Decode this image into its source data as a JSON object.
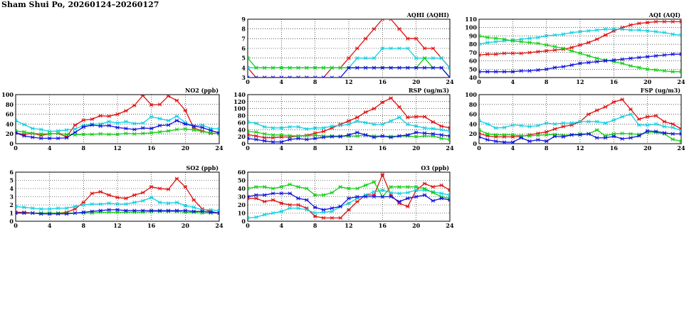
{
  "page": {
    "title": "Sham Shui Po, 20260124–20260127"
  },
  "colors": {
    "series_colors": [
      "#e01010",
      "#10d0e0",
      "#10d010",
      "#1010e0"
    ],
    "grid": "#000000"
  },
  "chart_data": [
    {
      "id": "aqhi",
      "type": "line",
      "title": "AQHI (AQHI)",
      "xlim": [
        0,
        24
      ],
      "ylim": [
        3,
        9
      ],
      "xticks": [
        0,
        4,
        8,
        12,
        16,
        20,
        24
      ],
      "yticks": [
        3,
        4,
        5,
        6,
        7,
        8,
        9
      ],
      "x": [
        0,
        1,
        2,
        3,
        4,
        5,
        6,
        7,
        8,
        9,
        10,
        11,
        12,
        13,
        14,
        15,
        16,
        17,
        18,
        19,
        20,
        21,
        22,
        23,
        24
      ],
      "series": [
        {
          "values": [
            4,
            3,
            3,
            3,
            3,
            3,
            3,
            3,
            3,
            3,
            4,
            4,
            5,
            6,
            7,
            8,
            9,
            9,
            8,
            7,
            7,
            6,
            6,
            5,
            4
          ]
        },
        {
          "values": [
            4,
            4,
            4,
            4,
            4,
            4,
            4,
            4,
            4,
            4,
            4,
            4,
            4,
            5,
            5,
            5,
            6,
            6,
            6,
            6,
            5,
            5,
            5,
            5,
            4
          ]
        },
        {
          "values": [
            5,
            4,
            4,
            4,
            4,
            4,
            4,
            4,
            4,
            4,
            4,
            4,
            4,
            4,
            4,
            4,
            4,
            4,
            4,
            4,
            4,
            5,
            4,
            4,
            3
          ]
        },
        {
          "values": [
            3,
            3,
            3,
            3,
            3,
            3,
            3,
            3,
            3,
            3,
            3,
            3,
            4,
            4,
            4,
            4,
            4,
            4,
            4,
            4,
            4,
            4,
            4,
            4,
            3
          ]
        }
      ]
    },
    {
      "id": "aqi",
      "type": "line",
      "title": "AQI (AQI)",
      "xlim": [
        0,
        24
      ],
      "ylim": [
        40,
        110
      ],
      "xticks": [
        0,
        4,
        8,
        12,
        16,
        20,
        24
      ],
      "yticks": [
        40,
        50,
        60,
        70,
        80,
        90,
        100,
        110
      ],
      "x": [
        0,
        1,
        2,
        3,
        4,
        5,
        6,
        7,
        8,
        9,
        10,
        11,
        12,
        13,
        14,
        15,
        16,
        17,
        18,
        19,
        20,
        21,
        22,
        23,
        24
      ],
      "series": [
        {
          "values": [
            67,
            68,
            68,
            69,
            69,
            69,
            70,
            71,
            72,
            73,
            74,
            76,
            79,
            82,
            86,
            91,
            96,
            100,
            103,
            105,
            106,
            107,
            107,
            107,
            107
          ]
        },
        {
          "values": [
            80,
            82,
            83,
            84,
            85,
            86,
            87,
            88,
            90,
            91,
            92,
            94,
            95,
            96,
            97,
            98,
            98,
            98,
            97,
            97,
            96,
            95,
            94,
            92,
            91
          ]
        },
        {
          "values": [
            90,
            88,
            87,
            86,
            84,
            83,
            82,
            81,
            79,
            77,
            75,
            72,
            69,
            66,
            63,
            61,
            59,
            57,
            54,
            52,
            50,
            49,
            48,
            47,
            47
          ]
        },
        {
          "values": [
            47,
            47,
            47,
            47,
            47,
            48,
            48,
            49,
            50,
            52,
            53,
            55,
            57,
            58,
            59,
            60,
            61,
            62,
            63,
            64,
            65,
            66,
            67,
            68,
            68
          ]
        }
      ]
    },
    {
      "id": "no2",
      "type": "line",
      "title": "NO2 (ppb)",
      "xlim": [
        0,
        24
      ],
      "ylim": [
        0,
        100
      ],
      "xticks": [
        0,
        4,
        8,
        12,
        16,
        20,
        24
      ],
      "yticks": [
        0,
        20,
        40,
        60,
        80,
        100
      ],
      "x": [
        0,
        1,
        2,
        3,
        4,
        5,
        6,
        7,
        8,
        9,
        10,
        11,
        12,
        13,
        14,
        15,
        16,
        17,
        18,
        19,
        20,
        21,
        22,
        23,
        24
      ],
      "series": [
        {
          "values": [
            22,
            19,
            21,
            17,
            20,
            21,
            14,
            38,
            48,
            50,
            57,
            56,
            60,
            67,
            78,
            98,
            79,
            80,
            97,
            88,
            68,
            32,
            26,
            21,
            21
          ]
        },
        {
          "values": [
            47,
            39,
            31,
            29,
            25,
            26,
            28,
            30,
            37,
            40,
            40,
            45,
            42,
            45,
            41,
            42,
            55,
            51,
            47,
            56,
            43,
            36,
            38,
            31,
            30
          ]
        },
        {
          "values": [
            26,
            24,
            21,
            20,
            20,
            21,
            19,
            18,
            19,
            19,
            20,
            19,
            19,
            21,
            20,
            21,
            22,
            24,
            26,
            29,
            30,
            28,
            25,
            22,
            20
          ]
        },
        {
          "values": [
            22,
            16,
            13,
            11,
            11,
            11,
            12,
            23,
            34,
            38,
            36,
            37,
            33,
            31,
            29,
            32,
            31,
            37,
            38,
            47,
            40,
            36,
            33,
            27,
            22
          ]
        }
      ]
    },
    {
      "id": "rsp",
      "type": "line",
      "title": "RSP (ug/m3)",
      "xlim": [
        0,
        24
      ],
      "ylim": [
        0,
        140
      ],
      "xticks": [
        0,
        4,
        8,
        12,
        16,
        20,
        24
      ],
      "yticks": [
        0,
        20,
        40,
        60,
        80,
        100,
        120,
        140
      ],
      "x": [
        0,
        1,
        2,
        3,
        4,
        5,
        6,
        7,
        8,
        9,
        10,
        11,
        12,
        13,
        14,
        15,
        16,
        17,
        18,
        19,
        20,
        21,
        22,
        23,
        24
      ],
      "series": [
        {
          "values": [
            26,
            22,
            17,
            17,
            19,
            19,
            22,
            24,
            30,
            35,
            45,
            55,
            65,
            75,
            90,
            100,
            118,
            130,
            105,
            75,
            77,
            77,
            62,
            50,
            45
          ]
        },
        {
          "values": [
            62,
            58,
            48,
            45,
            45,
            48,
            48,
            42,
            45,
            45,
            50,
            52,
            55,
            65,
            60,
            55,
            55,
            65,
            75,
            55,
            50,
            45,
            43,
            40,
            35
          ]
        },
        {
          "values": [
            35,
            33,
            28,
            25,
            25,
            23,
            22,
            23,
            24,
            22,
            22,
            22,
            22,
            22,
            25,
            22,
            22,
            21,
            22,
            22,
            20,
            22,
            22,
            15,
            12
          ]
        },
        {
          "values": [
            15,
            12,
            8,
            5,
            5,
            12,
            15,
            12,
            15,
            18,
            20,
            20,
            25,
            32,
            25,
            18,
            22,
            18,
            22,
            25,
            32,
            30,
            28,
            25,
            22
          ]
        }
      ]
    },
    {
      "id": "fsp",
      "type": "line",
      "title": "FSP (ug/m3)",
      "xlim": [
        0,
        24
      ],
      "ylim": [
        0,
        100
      ],
      "xticks": [
        0,
        4,
        8,
        12,
        16,
        20,
        24
      ],
      "yticks": [
        0,
        20,
        40,
        60,
        80,
        100
      ],
      "x": [
        0,
        1,
        2,
        3,
        4,
        5,
        6,
        7,
        8,
        9,
        10,
        11,
        12,
        13,
        14,
        15,
        16,
        17,
        18,
        19,
        20,
        21,
        22,
        23,
        24
      ],
      "series": [
        {
          "values": [
            21,
            16,
            14,
            14,
            14,
            15,
            18,
            21,
            24,
            30,
            35,
            38,
            45,
            60,
            68,
            75,
            85,
            90,
            70,
            50,
            55,
            57,
            45,
            40,
            30
          ]
        },
        {
          "values": [
            47,
            40,
            32,
            33,
            38,
            37,
            35,
            37,
            42,
            40,
            42,
            42,
            45,
            45,
            45,
            42,
            48,
            55,
            60,
            38,
            38,
            40,
            35,
            33,
            27
          ]
        },
        {
          "values": [
            28,
            20,
            18,
            18,
            18,
            16,
            16,
            17,
            18,
            19,
            17,
            18,
            20,
            20,
            28,
            16,
            20,
            21,
            20,
            19,
            23,
            23,
            20,
            9,
            5
          ]
        },
        {
          "values": [
            14,
            8,
            5,
            3,
            3,
            12,
            5,
            8,
            5,
            15,
            14,
            18,
            18,
            20,
            12,
            12,
            15,
            10,
            12,
            16,
            26,
            25,
            22,
            20,
            20
          ]
        }
      ]
    },
    {
      "id": "so2",
      "type": "line",
      "title": "SO2 (ppb)",
      "xlim": [
        0,
        24
      ],
      "ylim": [
        0,
        6
      ],
      "xticks": [
        0,
        4,
        8,
        12,
        16,
        20,
        24
      ],
      "yticks": [
        0,
        1,
        2,
        3,
        4,
        5,
        6
      ],
      "x": [
        0,
        1,
        2,
        3,
        4,
        5,
        6,
        7,
        8,
        9,
        10,
        11,
        12,
        13,
        14,
        15,
        16,
        17,
        18,
        19,
        20,
        21,
        22,
        23,
        24
      ],
      "series": [
        {
          "values": [
            1.1,
            1.1,
            1.0,
            1.0,
            1.0,
            1.0,
            1.1,
            1.5,
            2.3,
            3.4,
            3.6,
            3.2,
            2.9,
            2.8,
            3.2,
            3.5,
            4.2,
            4.0,
            3.9,
            5.2,
            4.2,
            2.6,
            1.5,
            1.2,
            1.0
          ]
        },
        {
          "values": [
            1.8,
            1.7,
            1.6,
            1.5,
            1.5,
            1.6,
            1.6,
            1.8,
            2.0,
            2.1,
            2.1,
            2.2,
            2.1,
            2.1,
            2.3,
            2.5,
            2.9,
            2.3,
            2.2,
            2.3,
            1.9,
            1.7,
            1.4,
            1.4,
            1.3
          ]
        },
        {
          "values": [
            1.0,
            1.0,
            1.0,
            1.0,
            1.0,
            1.0,
            1.0,
            1.0,
            1.0,
            1.0,
            1.1,
            1.1,
            1.1,
            1.1,
            1.1,
            1.1,
            1.2,
            1.2,
            1.2,
            1.2,
            1.1,
            1.1,
            1.0,
            1.0,
            1.0
          ]
        },
        {
          "values": [
            1.0,
            1.0,
            1.0,
            0.9,
            0.9,
            0.9,
            0.9,
            1.0,
            1.1,
            1.2,
            1.3,
            1.4,
            1.4,
            1.3,
            1.3,
            1.3,
            1.3,
            1.3,
            1.3,
            1.3,
            1.3,
            1.2,
            1.2,
            1.1,
            1.0
          ]
        }
      ]
    },
    {
      "id": "o3",
      "type": "line",
      "title": "O3 (ppb)",
      "xlim": [
        0,
        24
      ],
      "ylim": [
        0,
        60
      ],
      "xticks": [
        0,
        4,
        8,
        12,
        16,
        20,
        24
      ],
      "yticks": [
        0,
        10,
        20,
        30,
        40,
        50,
        60
      ],
      "x": [
        0,
        1,
        2,
        3,
        4,
        5,
        6,
        7,
        8,
        9,
        10,
        11,
        12,
        13,
        14,
        15,
        16,
        17,
        18,
        19,
        20,
        21,
        22,
        23,
        24
      ],
      "series": [
        {
          "values": [
            28,
            28,
            24,
            26,
            22,
            20,
            20,
            16,
            6,
            4,
            4,
            4,
            14,
            24,
            32,
            32,
            57,
            32,
            22,
            18,
            38,
            46,
            42,
            44,
            38
          ]
        },
        {
          "values": [
            4,
            5,
            8,
            10,
            12,
            16,
            16,
            14,
            10,
            11,
            12,
            18,
            22,
            28,
            32,
            36,
            38,
            35,
            34,
            35,
            38,
            38,
            36,
            34,
            32
          ]
        },
        {
          "values": [
            40,
            42,
            42,
            40,
            42,
            45,
            42,
            40,
            32,
            32,
            35,
            42,
            40,
            40,
            44,
            48,
            30,
            42,
            42,
            42,
            42,
            40,
            35,
            30,
            28
          ]
        },
        {
          "values": [
            30,
            32,
            32,
            34,
            34,
            34,
            28,
            26,
            17,
            14,
            16,
            18,
            28,
            30,
            30,
            30,
            30,
            30,
            24,
            28,
            30,
            32,
            25,
            28,
            26
          ]
        }
      ]
    }
  ]
}
